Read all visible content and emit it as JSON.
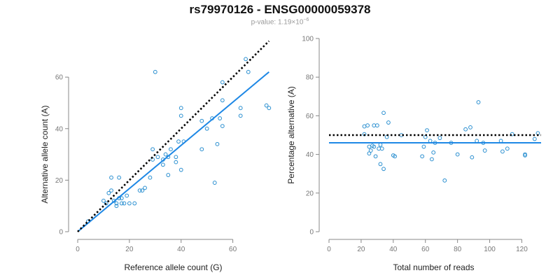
{
  "header": {
    "title": "rs79970126 - ENSG00000059378",
    "subtitle_prefix": "p-value: 1.19×10",
    "subtitle_exponent": "−6"
  },
  "colors": {
    "points": "#2a8fd0",
    "fit_line": "#1e88e5",
    "reference_line": "#000000",
    "axis": "#888888"
  },
  "chart_data": [
    {
      "type": "scatter",
      "xlabel": "Reference allele count (G)",
      "ylabel": "Alternative allele count (A)",
      "xlim": [
        0,
        75
      ],
      "ylim": [
        0,
        72
      ],
      "xticks": [
        0,
        20,
        40,
        60
      ],
      "yticks": [
        0,
        20,
        40,
        60
      ],
      "grid": false,
      "points": [
        [
          4,
          4
        ],
        [
          10,
          12
        ],
        [
          11,
          11
        ],
        [
          12,
          15
        ],
        [
          13,
          16
        ],
        [
          13,
          21
        ],
        [
          14,
          12
        ],
        [
          15,
          10
        ],
        [
          15,
          11
        ],
        [
          16,
          13
        ],
        [
          16,
          21
        ],
        [
          17,
          13
        ],
        [
          17,
          11
        ],
        [
          18,
          11
        ],
        [
          19,
          14
        ],
        [
          20,
          11
        ],
        [
          22,
          11
        ],
        [
          24,
          16
        ],
        [
          25,
          16
        ],
        [
          26,
          17
        ],
        [
          28,
          21
        ],
        [
          29,
          28
        ],
        [
          29,
          32
        ],
        [
          30,
          62
        ],
        [
          31,
          29
        ],
        [
          33,
          26
        ],
        [
          33,
          28
        ],
        [
          34,
          30
        ],
        [
          35,
          22
        ],
        [
          35,
          29
        ],
        [
          36,
          32
        ],
        [
          38,
          29
        ],
        [
          38,
          27
        ],
        [
          39,
          35
        ],
        [
          40,
          24
        ],
        [
          40,
          45
        ],
        [
          40,
          48
        ],
        [
          41,
          35
        ],
        [
          48,
          43
        ],
        [
          48,
          32
        ],
        [
          50,
          40
        ],
        [
          52,
          44
        ],
        [
          53,
          19
        ],
        [
          54,
          34
        ],
        [
          55,
          44
        ],
        [
          56,
          58
        ],
        [
          56,
          51
        ],
        [
          56,
          41
        ],
        [
          63,
          48
        ],
        [
          63,
          45
        ],
        [
          65,
          67
        ],
        [
          66,
          62
        ],
        [
          73,
          49
        ],
        [
          74,
          48
        ]
      ],
      "fit_line": [
        [
          0,
          0
        ],
        [
          74,
          62
        ]
      ],
      "reference_line": [
        [
          0,
          0
        ],
        [
          74,
          74
        ]
      ]
    },
    {
      "type": "scatter",
      "xlabel": "Total number of reads",
      "ylabel": "Percentage alternative (A)",
      "xlim": [
        0,
        132
      ],
      "ylim": [
        0,
        100
      ],
      "xticks": [
        0,
        20,
        40,
        60,
        80,
        100,
        120
      ],
      "yticks": [
        0,
        20,
        40,
        60,
        80,
        100
      ],
      "grid": false,
      "points": [
        [
          22,
          54.5
        ],
        [
          22,
          50.5
        ],
        [
          24,
          55
        ],
        [
          25,
          40.5
        ],
        [
          25,
          44
        ],
        [
          26,
          42
        ],
        [
          27,
          44.5
        ],
        [
          28,
          44
        ],
        [
          28,
          55
        ],
        [
          29,
          39
        ],
        [
          30,
          55
        ],
        [
          31,
          43
        ],
        [
          32,
          35
        ],
        [
          32,
          45
        ],
        [
          33,
          43
        ],
        [
          34,
          32.5
        ],
        [
          34,
          61.5
        ],
        [
          36,
          49
        ],
        [
          37,
          56.5
        ],
        [
          40,
          39.5
        ],
        [
          41,
          39
        ],
        [
          45,
          50
        ],
        [
          58,
          39
        ],
        [
          59,
          44
        ],
        [
          60,
          49
        ],
        [
          61,
          52.5
        ],
        [
          63,
          47
        ],
        [
          64,
          37.5
        ],
        [
          65,
          41
        ],
        [
          66,
          46
        ],
        [
          69,
          48.5
        ],
        [
          72,
          26.5
        ],
        [
          76,
          46
        ],
        [
          80,
          40
        ],
        [
          85,
          53
        ],
        [
          88,
          54
        ],
        [
          89,
          38.5
        ],
        [
          92,
          47
        ],
        [
          93,
          67
        ],
        [
          96,
          46
        ],
        [
          97,
          42
        ],
        [
          107,
          47
        ],
        [
          108,
          41.5
        ],
        [
          111,
          43
        ],
        [
          114,
          50.5
        ],
        [
          122,
          39.5
        ],
        [
          122,
          40
        ],
        [
          130,
          51
        ],
        [
          128,
          48
        ]
      ],
      "fit_line": [
        [
          0,
          46
        ],
        [
          132,
          46
        ]
      ],
      "reference_line": [
        [
          0,
          50
        ],
        [
          132,
          50
        ]
      ]
    }
  ]
}
